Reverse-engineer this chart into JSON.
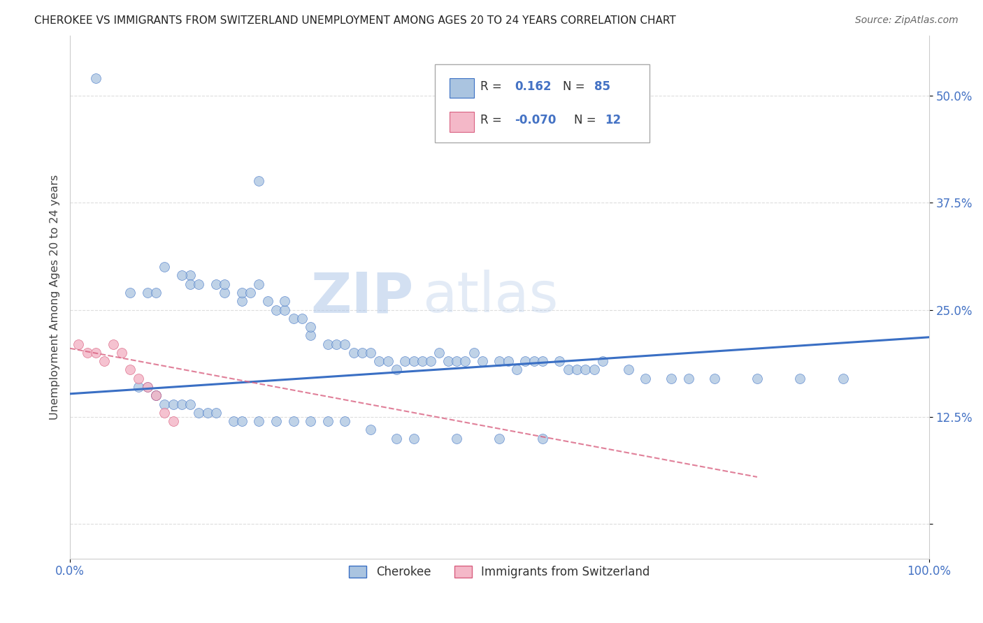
{
  "title": "CHEROKEE VS IMMIGRANTS FROM SWITZERLAND UNEMPLOYMENT AMONG AGES 20 TO 24 YEARS CORRELATION CHART",
  "source": "Source: ZipAtlas.com",
  "ylabel": "Unemployment Among Ages 20 to 24 years",
  "yticks": [
    0.0,
    0.125,
    0.25,
    0.375,
    0.5
  ],
  "ytick_labels": [
    "",
    "12.5%",
    "25.0%",
    "37.5%",
    "50.0%"
  ],
  "xlim": [
    0.0,
    1.0
  ],
  "ylim": [
    -0.04,
    0.57
  ],
  "cherokee_color": "#aac4e0",
  "cherokee_line_color": "#3a6fc4",
  "swiss_color": "#f4b8c8",
  "swiss_line_color": "#d96080",
  "watermark_zip": "ZIP",
  "watermark_atlas": "atlas",
  "cherokee_x": [
    0.03,
    0.22,
    0.14,
    0.07,
    0.09,
    0.1,
    0.11,
    0.13,
    0.14,
    0.15,
    0.17,
    0.18,
    0.18,
    0.2,
    0.2,
    0.21,
    0.22,
    0.23,
    0.24,
    0.25,
    0.25,
    0.26,
    0.27,
    0.28,
    0.28,
    0.3,
    0.31,
    0.32,
    0.33,
    0.34,
    0.35,
    0.36,
    0.37,
    0.38,
    0.39,
    0.4,
    0.41,
    0.42,
    0.43,
    0.44,
    0.45,
    0.46,
    0.47,
    0.48,
    0.5,
    0.51,
    0.52,
    0.53,
    0.54,
    0.55,
    0.57,
    0.58,
    0.59,
    0.6,
    0.61,
    0.62,
    0.65,
    0.67,
    0.7,
    0.72,
    0.75,
    0.8,
    0.85,
    0.9,
    0.08,
    0.09,
    0.1,
    0.1,
    0.11,
    0.12,
    0.13,
    0.14,
    0.15,
    0.16,
    0.17,
    0.19,
    0.2,
    0.22,
    0.24,
    0.26,
    0.28,
    0.3,
    0.32,
    0.35,
    0.38,
    0.4,
    0.45,
    0.5,
    0.55
  ],
  "cherokee_y": [
    0.52,
    0.4,
    0.29,
    0.27,
    0.27,
    0.27,
    0.3,
    0.29,
    0.28,
    0.28,
    0.28,
    0.27,
    0.28,
    0.26,
    0.27,
    0.27,
    0.28,
    0.26,
    0.25,
    0.25,
    0.26,
    0.24,
    0.24,
    0.22,
    0.23,
    0.21,
    0.21,
    0.21,
    0.2,
    0.2,
    0.2,
    0.19,
    0.19,
    0.18,
    0.19,
    0.19,
    0.19,
    0.19,
    0.2,
    0.19,
    0.19,
    0.19,
    0.2,
    0.19,
    0.19,
    0.19,
    0.18,
    0.19,
    0.19,
    0.19,
    0.19,
    0.18,
    0.18,
    0.18,
    0.18,
    0.19,
    0.18,
    0.17,
    0.17,
    0.17,
    0.17,
    0.17,
    0.17,
    0.17,
    0.16,
    0.16,
    0.15,
    0.15,
    0.14,
    0.14,
    0.14,
    0.14,
    0.13,
    0.13,
    0.13,
    0.12,
    0.12,
    0.12,
    0.12,
    0.12,
    0.12,
    0.12,
    0.12,
    0.11,
    0.1,
    0.1,
    0.1,
    0.1,
    0.1
  ],
  "swiss_x": [
    0.01,
    0.02,
    0.03,
    0.04,
    0.05,
    0.06,
    0.07,
    0.08,
    0.09,
    0.1,
    0.11,
    0.12
  ],
  "swiss_y": [
    0.21,
    0.2,
    0.2,
    0.19,
    0.21,
    0.2,
    0.18,
    0.17,
    0.16,
    0.15,
    0.13,
    0.12
  ],
  "cherokee_trend_x": [
    0.0,
    1.0
  ],
  "cherokee_trend_y": [
    0.152,
    0.218
  ],
  "swiss_trend_x": [
    0.0,
    0.8
  ],
  "swiss_trend_y": [
    0.205,
    0.055
  ]
}
